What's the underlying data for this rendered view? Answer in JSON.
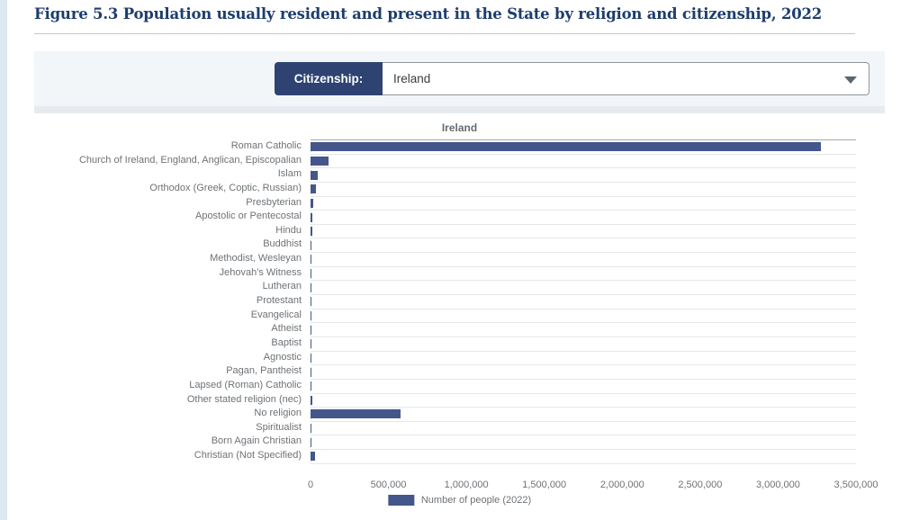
{
  "page": {
    "title": "Figure 5.3 Population usually resident and present in the State by religion and citizenship, 2022"
  },
  "filter": {
    "label": "Citizenship:",
    "value": "Ireland"
  },
  "chart_data": {
    "type": "bar",
    "orientation": "horizontal",
    "title": "Ireland",
    "xlabel": "",
    "ylabel": "",
    "legend": "Number of people (2022)",
    "legend_position": "bottom-center",
    "grid": "horizontal-row-lines",
    "xlim": [
      0,
      3500000
    ],
    "x_ticks": [
      "0",
      "500,000",
      "1,000,000",
      "1,500,000",
      "2,000,000",
      "2,500,000",
      "3,000,000",
      "3,500,000"
    ],
    "bar_color": "#44568a",
    "categories": [
      "Roman Catholic",
      "Church of Ireland, England, Anglican, Episcopalian",
      "Islam",
      "Orthodox (Greek, Coptic, Russian)",
      "Presbyterian",
      "Apostolic or Pentecostal",
      "Hindu",
      "Buddhist",
      "Methodist, Wesleyan",
      "Jehovah's Witness",
      "Lutheran",
      "Protestant",
      "Evangelical",
      "Atheist",
      "Baptist",
      "Agnostic",
      "Pagan, Pantheist",
      "Lapsed (Roman) Catholic",
      "Other stated religion (nec)",
      "No religion",
      "Spiritualist",
      "Born Again Christian",
      "Christian (Not Specified)"
    ],
    "values": [
      3276000,
      115000,
      46000,
      35000,
      17000,
      9000,
      11000,
      6000,
      6000,
      4500,
      3000,
      4000,
      8500,
      3000,
      4000,
      4500,
      4000,
      3000,
      13000,
      580000,
      3000,
      3000,
      26000
    ]
  },
  "colors": {
    "title_text": "#1e3d6d",
    "accent_navy": "#2e4372",
    "bar": "#44568a",
    "panel_bg": "#f2f6f9",
    "strip_bg": "#e7ebef",
    "left_strip": "#dde8f1",
    "muted_text": "#6e7276"
  }
}
